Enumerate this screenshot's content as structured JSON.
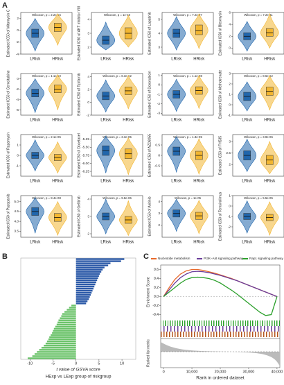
{
  "panels": {
    "A": {
      "label": "A",
      "plots": [
        {
          "ylabel": "Estimated IC50 of Mitomycin C",
          "stat": "Wilcoxon, p = 2.2e-16",
          "ylim": [
            -4,
            3
          ],
          "yticks": [
            -4,
            -2,
            0,
            2
          ],
          "groups": [
            {
              "name": "LRisk",
              "color": "#2166ac",
              "min": -3.5,
              "q1": -1.2,
              "median": -0.5,
              "q3": 0.2,
              "max": 2
            },
            {
              "name": "HRisk",
              "color": "#f2b631",
              "min": -2.5,
              "q1": -0.2,
              "median": 0.5,
              "q3": 1.2,
              "max": 2.8
            }
          ]
        },
        {
          "ylabel": "Estimated IC50 of AKT inhibitor VIII",
          "stat": "Wilcoxon, p = 1e-10",
          "ylim": [
            1.5,
            4.5
          ],
          "yticks": [
            2,
            3,
            4
          ],
          "groups": [
            {
              "name": "LRisk",
              "color": "#2166ac",
              "min": 1.8,
              "q1": 2.2,
              "median": 2.5,
              "q3": 2.8,
              "max": 3.8
            },
            {
              "name": "HRisk",
              "color": "#f2b631",
              "min": 2,
              "q1": 2.6,
              "median": 3,
              "q3": 3.4,
              "max": 4.3
            }
          ]
        },
        {
          "ylabel": "Estimated IC50 of Lapatinib",
          "stat": "Wilcoxon, p = 7.2e-07",
          "ylim": [
            2.5,
            5.5
          ],
          "yticks": [
            3,
            4,
            5
          ],
          "groups": [
            {
              "name": "LRisk",
              "color": "#2166ac",
              "min": 2.8,
              "q1": 3.7,
              "median": 4,
              "q3": 4.3,
              "max": 5.2
            },
            {
              "name": "HRisk",
              "color": "#f2b631",
              "min": 2.9,
              "q1": 3.9,
              "median": 4.2,
              "q3": 4.6,
              "max": 5.4
            }
          ]
        },
        {
          "ylabel": "Estimated IC50 of Bleomycin",
          "stat": "Wilcoxon, p = 7.2e-11",
          "ylim": [
            -1,
            6
          ],
          "yticks": [
            0,
            2,
            4,
            6
          ],
          "groups": [
            {
              "name": "LRisk",
              "color": "#2166ac",
              "min": -0.5,
              "q1": 1.4,
              "median": 2,
              "q3": 2.6,
              "max": 4.5
            },
            {
              "name": "HRisk",
              "color": "#f2b631",
              "min": 0,
              "q1": 2,
              "median": 2.6,
              "q3": 3.3,
              "max": 5.8
            }
          ]
        },
        {
          "ylabel": "Estimated IC50 of Gemcitabine",
          "stat": "Wilcoxon, p = 1.1e-10",
          "ylim": [
            -7,
            1
          ],
          "yticks": [
            -6,
            -4,
            -2,
            0
          ],
          "groups": [
            {
              "name": "LRisk",
              "color": "#2166ac",
              "min": -6.5,
              "q1": -3.5,
              "median": -2.8,
              "q3": -2,
              "max": 0
            },
            {
              "name": "HRisk",
              "color": "#f2b631",
              "min": -6,
              "q1": -2.7,
              "median": -2,
              "q3": -1.2,
              "max": 0.8
            }
          ]
        },
        {
          "ylabel": "Estimated IC50 of Tipifarnib",
          "stat": "Wilcoxon, p = 6.3e-12",
          "ylim": [
            -2,
            4.5
          ],
          "yticks": [
            -2,
            0,
            2,
            4
          ],
          "groups": [
            {
              "name": "LRisk",
              "color": "#2166ac",
              "min": -1.5,
              "q1": 0.4,
              "median": 1,
              "q3": 1.6,
              "max": 3.5
            },
            {
              "name": "HRisk",
              "color": "#f2b631",
              "min": -1,
              "q1": 1.2,
              "median": 1.8,
              "q3": 2.4,
              "max": 4.2
            }
          ]
        },
        {
          "ylabel": "Estimated IC50 of Doxorubicin",
          "stat": "Wilcoxon, p = 1.1e-08",
          "ylim": [
            -3.2,
            1.2
          ],
          "yticks": [
            -3,
            -2,
            -1,
            0,
            1
          ],
          "groups": [
            {
              "name": "LRisk",
              "color": "#2166ac",
              "min": -2.8,
              "q1": -1.4,
              "median": -1,
              "q3": -0.6,
              "max": 0.6
            },
            {
              "name": "HRisk",
              "color": "#f2b631",
              "min": -2.5,
              "q1": -1,
              "median": -0.6,
              "q3": -0.2,
              "max": 1
            }
          ]
        },
        {
          "ylabel": "Estimated IC50 of Methotrexate",
          "stat": "Wilcoxon, p = 8.6e-12",
          "ylim": [
            -1,
            3
          ],
          "yticks": [
            -1,
            0,
            1,
            2,
            3
          ],
          "groups": [
            {
              "name": "LRisk",
              "color": "#2166ac",
              "min": -0.6,
              "q1": 0.4,
              "median": 0.8,
              "q3": 1.2,
              "max": 2.2
            },
            {
              "name": "HRisk",
              "color": "#f2b631",
              "min": -0.5,
              "q1": 0.9,
              "median": 1.3,
              "q3": 1.7,
              "max": 2.8
            }
          ]
        },
        {
          "ylabel": "Estimated IC50 of Rapamycin",
          "stat": "Wilcoxon, p = 2.1e-05",
          "ylim": [
            -2,
            2
          ],
          "yticks": [
            -1,
            0,
            1
          ],
          "groups": [
            {
              "name": "LRisk",
              "color": "#2166ac",
              "min": -1.5,
              "q1": -0.3,
              "median": 0,
              "q3": 0.3,
              "max": 1.5
            },
            {
              "name": "HRisk",
              "color": "#f2b631",
              "min": -1.7,
              "q1": -0.5,
              "median": -0.2,
              "q3": 0.1,
              "max": 1.3
            }
          ]
        },
        {
          "ylabel": "Estimated IC50 of Docetaxel",
          "stat": "Wilcoxon, p = 3.3e-05",
          "ylim": [
            -6.4,
            -5.1
          ],
          "yticks": [
            -5.25,
            {
              "value": -5.5,
              "label": "-5.50"
            },
            -5.75,
            {
              "value": -6,
              "label": "-6.00"
            },
            -6.25
          ],
          "groups": [
            {
              "name": "LRisk",
              "color": "#2166ac",
              "min": -6.3,
              "q1": -5.75,
              "median": -5.6,
              "q3": -5.45,
              "max": -5.15
            },
            {
              "name": "HRisk",
              "color": "#f2b631",
              "min": -6.35,
              "q1": -5.85,
              "median": -5.7,
              "q3": -5.55,
              "max": -5.2
            }
          ]
        },
        {
          "ylabel": "Estimated IC50 of AZD8055",
          "stat": "Wilcoxon, p = 1.3e-05",
          "ylim": [
            -1,
            1
          ],
          "yticks": [
            -0.5,
            0,
            0.5
          ],
          "groups": [
            {
              "name": "LRisk",
              "color": "#2166ac",
              "min": -0.8,
              "q1": 0,
              "median": 0.2,
              "q3": 0.4,
              "max": 0.9
            },
            {
              "name": "HRisk",
              "color": "#f2b631",
              "min": -0.9,
              "q1": -0.2,
              "median": 0,
              "q3": 0.2,
              "max": 0.8
            }
          ]
        },
        {
          "ylabel": "Estimated IC50 of FH535",
          "stat": "Wilcoxon, p = 3.9e-06",
          "ylim": [
            1.5,
            3.3
          ],
          "yticks": [
            2,
            2.5,
            3
          ],
          "groups": [
            {
              "name": "LRisk",
              "color": "#2166ac",
              "min": 1.7,
              "q1": 2.2,
              "median": 2.4,
              "q3": 2.6,
              "max": 3.1
            },
            {
              "name": "HRisk",
              "color": "#f2b631",
              "min": 1.6,
              "q1": 2,
              "median": 2.2,
              "q3": 2.4,
              "max": 3
            }
          ]
        },
        {
          "ylabel": "Estimated IC50 of Pazopanib",
          "stat": "Wilcoxon, p = 8.4e-08",
          "ylim": [
            3.2,
            5.3
          ],
          "yticks": [
            3.5,
            {
              "value": 4,
              "label": "4.0"
            },
            4.5,
            {
              "value": 5,
              "label": "5.0"
            }
          ],
          "groups": [
            {
              "name": "LRisk",
              "color": "#2166ac",
              "min": 3.4,
              "q1": 4.3,
              "median": 4.5,
              "q3": 4.7,
              "max": 5.2
            },
            {
              "name": "HRisk",
              "color": "#f2b631",
              "min": 3.3,
              "q1": 4,
              "median": 4.2,
              "q3": 4.4,
              "max": 5
            }
          ]
        },
        {
          "ylabel": "Estimated IC50 of Gefitinib",
          "stat": "Wilcoxon, p = 9.8e-06",
          "ylim": [
            1.8,
            4.2
          ],
          "yticks": [
            2,
            3,
            4
          ],
          "groups": [
            {
              "name": "LRisk",
              "color": "#2166ac",
              "min": 2,
              "q1": 2.8,
              "median": 3,
              "q3": 3.2,
              "max": 4
            },
            {
              "name": "HRisk",
              "color": "#f2b631",
              "min": 1.9,
              "q1": 2.6,
              "median": 2.8,
              "q3": 3,
              "max": 3.9
            }
          ]
        },
        {
          "ylabel": "Estimated IC50 of Axitinib",
          "stat": "Wilcoxon, p = 1e-05",
          "ylim": [
            1,
            4.5
          ],
          "yticks": [
            2,
            3,
            4
          ],
          "groups": [
            {
              "name": "LRisk",
              "color": "#2166ac",
              "min": 1.5,
              "q1": 2.7,
              "median": 3,
              "q3": 3.3,
              "max": 4.2
            },
            {
              "name": "HRisk",
              "color": "#f2b631",
              "min": 1.3,
              "q1": 2.5,
              "median": 2.8,
              "q3": 3.1,
              "max": 4.1
            }
          ]
        },
        {
          "ylabel": "Estimated IC50 of Temsirolimus",
          "stat": "Wilcoxon, p = 5.5e-05",
          "ylim": [
            -3,
            1
          ],
          "yticks": [
            -2,
            -1,
            0,
            1
          ],
          "groups": [
            {
              "name": "LRisk",
              "color": "#2166ac",
              "min": -2.6,
              "q1": -1.3,
              "median": -1,
              "q3": -0.7,
              "max": 0.5
            },
            {
              "name": "HRisk",
              "color": "#f2b631",
              "min": -2.8,
              "q1": -1.4,
              "median": -1.1,
              "q3": -0.8,
              "max": 0.4
            }
          ]
        }
      ]
    },
    "B": {
      "label": "B",
      "chart_data": {
        "type": "bar",
        "orientation": "horizontal",
        "xlabel": "t value of GSVA score",
        "subtitle": "HExp vs LExp group of riskgroup",
        "positive_color": "#2c5aa8",
        "negative_color": "#6cc36b",
        "xlim": [
          -12,
          13
        ],
        "xticks": [
          -10,
          -5,
          0,
          5,
          10
        ],
        "categories": [
          null,
          null,
          null,
          null,
          null,
          null,
          null,
          null,
          null,
          null,
          null,
          null,
          null,
          null,
          null,
          null,
          null,
          null,
          null,
          null,
          null,
          null,
          null,
          null,
          null,
          null,
          null,
          null,
          null,
          null,
          null,
          null,
          null,
          null,
          null,
          null,
          null,
          null,
          null,
          null,
          null,
          null,
          null,
          null,
          null,
          null,
          null,
          null
        ],
        "values": [
          10.5,
          9.8,
          7.5,
          7,
          6.2,
          5.8,
          5.5,
          5.2,
          5,
          4.8,
          4.6,
          4.4,
          4.2,
          4,
          3.8,
          3.6,
          3.4,
          3.2,
          3,
          2.8,
          2.5,
          2.2,
          -1,
          -1.5,
          -2,
          -2.5,
          -3,
          -3.2,
          -3.5,
          -3.8,
          -4,
          -4.2,
          -4.5,
          -4.8,
          -5,
          -5.2,
          -5.5,
          -5.8,
          -6,
          -6.3,
          -6.6,
          -7,
          -7.5,
          -8,
          -8.5,
          -9,
          -9.5,
          -10.5
        ]
      }
    },
    "C": {
      "label": "C",
      "chart_data": {
        "type": "line",
        "ylabel": "Enrichment Score",
        "ylabel2": "Ranked list metric",
        "xlabel": "Rank in ordered dataset",
        "xlim": [
          -1000,
          41000
        ],
        "xticks": [
          0,
          {
            "value": 10000,
            "label": "10,000"
          },
          {
            "value": 20000,
            "label": "20,000"
          },
          {
            "value": 30000,
            "label": "30,000"
          },
          {
            "value": 40000,
            "label": "40,000"
          }
        ],
        "ylim": [
          -0.5,
          0.7
        ],
        "yticks": [
          {
            "value": -0.4,
            "label": "-0.4"
          },
          {
            "value": -0.2,
            "label": "-0.2"
          },
          {
            "value": 0,
            "label": "0.0"
          },
          0.2,
          0.4,
          0.6
        ],
        "x": [
          0,
          2000,
          4000,
          6000,
          8000,
          10000,
          12000,
          14000,
          16000,
          18000,
          20000,
          22000,
          24000,
          26000,
          28000,
          30000,
          32000,
          34000,
          36000,
          38000,
          40000
        ],
        "series": [
          {
            "name": "Nucleotide metabolism",
            "color": "#e8692a",
            "values": [
              0,
              0.2,
              0.38,
              0.5,
              0.57,
              0.6,
              0.6,
              0.58,
              0.55,
              0.52,
              0.48,
              0.44,
              0.4,
              0.35,
              0.3,
              0.25,
              0.2,
              0.15,
              0.1,
              0.05,
              0
            ]
          },
          {
            "name": "PI3K−Akt signaling pathway",
            "color": "#6a3d9a",
            "values": [
              0,
              0.15,
              0.3,
              0.42,
              0.5,
              0.55,
              0.56,
              0.55,
              0.53,
              0.5,
              0.47,
              0.43,
              0.39,
              0.35,
              0.3,
              0.25,
              0.2,
              0.15,
              0.1,
              0.05,
              0
            ]
          },
          {
            "name": "Rap1 signaling pathway",
            "color": "#2ca02c",
            "values": [
              0,
              0.1,
              0.2,
              0.3,
              0.38,
              0.42,
              0.43,
              0.42,
              0.4,
              0.36,
              0.3,
              0.22,
              0.14,
              0.05,
              -0.05,
              -0.15,
              -0.25,
              -0.35,
              -0.42,
              -0.4,
              0
            ]
          }
        ]
      }
    }
  }
}
